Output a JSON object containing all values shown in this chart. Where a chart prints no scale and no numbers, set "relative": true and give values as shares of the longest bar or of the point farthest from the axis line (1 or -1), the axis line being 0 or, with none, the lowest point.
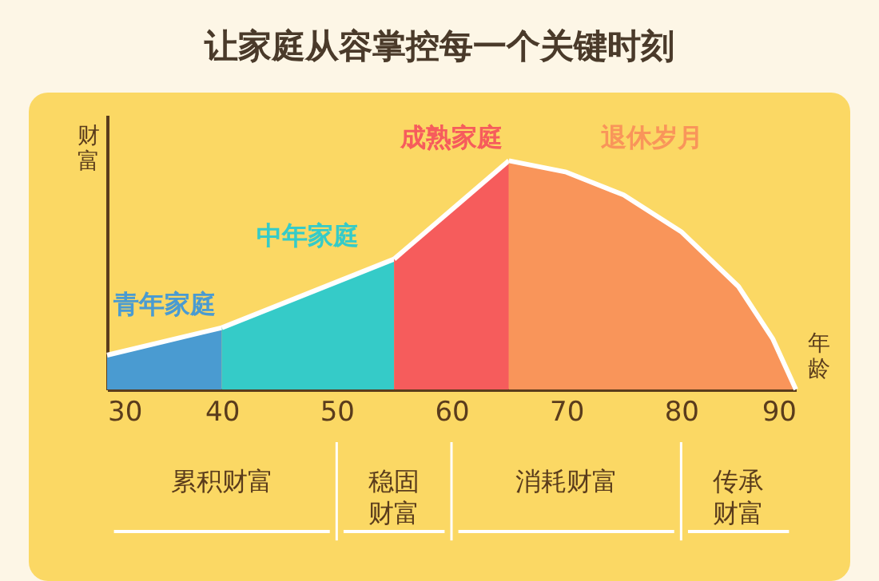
{
  "chart_data": {
    "type": "area",
    "title": "让家庭从容掌控每一个关键时刻",
    "xlabel": "年龄",
    "ylabel": "财富",
    "relative": true,
    "xlim": [
      30,
      90
    ],
    "xticks": [
      30,
      40,
      50,
      60,
      70,
      80,
      90
    ],
    "grid": false,
    "series": [
      {
        "name": "青年家庭",
        "color": "#4a9bd1",
        "x": [
          30,
          40
        ],
        "values": [
          0.15,
          0.27
        ]
      },
      {
        "name": "中年家庭",
        "color": "#35cbc8",
        "x": [
          40,
          55
        ],
        "values": [
          0.27,
          0.57
        ]
      },
      {
        "name": "成熟家庭",
        "color": "#f65c5c",
        "x": [
          55,
          65
        ],
        "values": [
          0.57,
          1
        ]
      },
      {
        "name": "退休岁月",
        "color": "#f9955a",
        "x": [
          65,
          70,
          75,
          80,
          85,
          88,
          90
        ],
        "values": [
          1,
          0.95,
          0.85,
          0.69,
          0.45,
          0.22,
          0
        ]
      }
    ],
    "annotations": [
      "累积财富",
      "稳固财富",
      "消耗财富",
      "传承财富"
    ]
  }
}
